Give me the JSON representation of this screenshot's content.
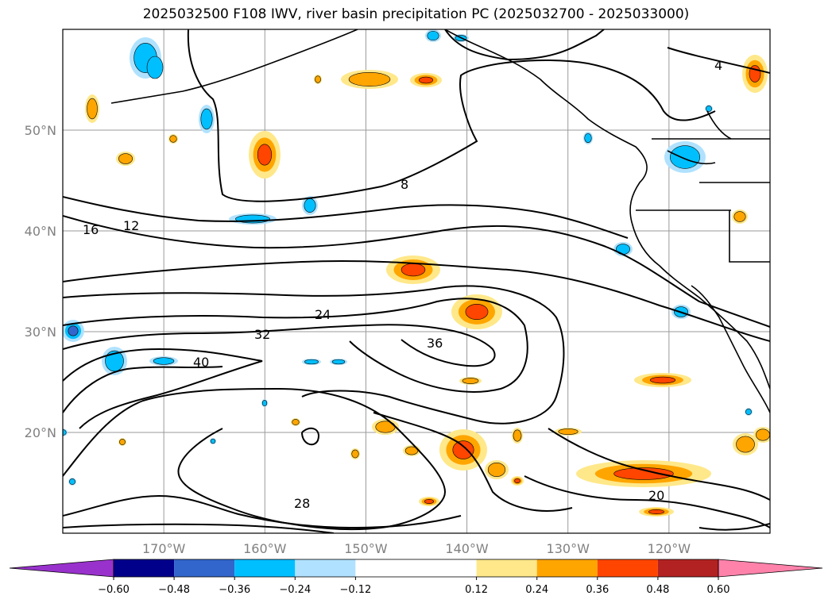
{
  "title": "2025032500 F108 IWV, river basin precipitation PC (2025032700 - 2025033000)",
  "chart_data": {
    "type": "contour-map",
    "title": "2025032500 F108 IWV, river basin precipitation PC (2025032700 - 2025033000)",
    "x_ticks": [
      "170°W",
      "160°W",
      "150°W",
      "140°W",
      "130°W",
      "120°W"
    ],
    "y_ticks": [
      "50°N",
      "40°N",
      "30°N",
      "20°N"
    ],
    "lon_range": [
      -180,
      -110
    ],
    "lat_range": [
      10,
      60
    ],
    "grid": true,
    "iwv_contour_labels": [
      "4",
      "8",
      "12",
      "16",
      "20",
      "24",
      "28",
      "32",
      "36",
      "40"
    ],
    "colorbar": {
      "orientation": "horizontal",
      "extend": "both",
      "ticks": [
        "−0.60",
        "−0.48",
        "−0.36",
        "−0.24",
        "−0.12",
        "0.12",
        "0.24",
        "0.36",
        "0.48",
        "0.60"
      ],
      "bounds": [
        -0.6,
        -0.48,
        -0.36,
        -0.24,
        -0.12,
        0.12,
        0.24,
        0.36,
        0.48,
        0.6
      ],
      "colors": [
        "#9932cc",
        "#00008b",
        "#3366cc",
        "#00bfff",
        "#b0e2ff",
        "#ffffff",
        "#ffe88a",
        "#ffa500",
        "#ff4500",
        "#b22222",
        "#ff82ab"
      ]
    }
  }
}
